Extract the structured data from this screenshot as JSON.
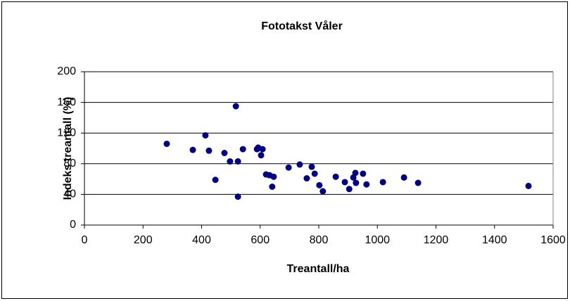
{
  "chart_data": {
    "type": "scatter",
    "title": "Fototakst Våler",
    "xlabel": "Treantall/ha",
    "ylabel": "Indeks treantall (%)",
    "color": "#000080",
    "grid": true,
    "xlim": [
      0,
      1600
    ],
    "xticks": [
      0,
      200,
      400,
      600,
      800,
      1000,
      1200,
      1400,
      1600
    ],
    "ylim": [
      0,
      200
    ],
    "yticks": [
      0,
      40,
      80,
      120,
      160,
      200
    ],
    "x": [
      281,
      370,
      413,
      425,
      447,
      478,
      497,
      517,
      524,
      524,
      541,
      589,
      593,
      603,
      608,
      620,
      632,
      641,
      646,
      697,
      735,
      759,
      776,
      786,
      802,
      814,
      858,
      889,
      904,
      918,
      925,
      927,
      951,
      963,
      1019,
      1091,
      1139,
      1516
    ],
    "values": [
      106,
      98,
      117,
      97,
      59,
      94,
      83,
      155,
      83,
      37,
      99,
      99,
      101,
      91,
      99,
      66,
      65,
      50,
      63,
      75,
      79,
      61,
      76,
      67,
      52,
      44,
      63,
      56,
      47,
      62,
      68,
      55,
      67,
      53,
      56,
      62,
      55,
      51
    ]
  }
}
